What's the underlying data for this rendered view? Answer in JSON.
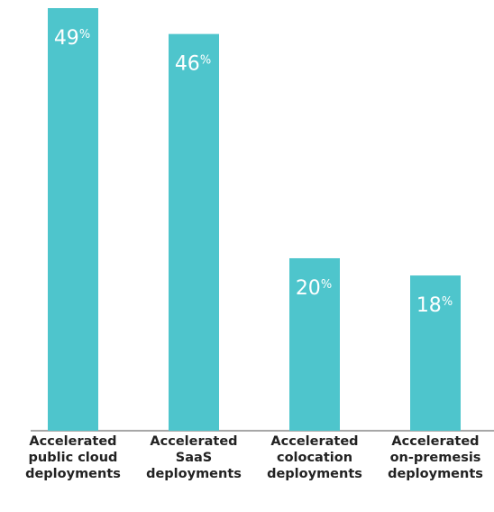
{
  "chart_data": {
    "type": "bar",
    "categories": [
      [
        "Accelerated",
        "public cloud",
        "deployments"
      ],
      [
        "Accelerated",
        "SaaS",
        "deployments"
      ],
      [
        "Accelerated",
        "colocation",
        "deployments"
      ],
      [
        "Accelerated",
        "on-premesis",
        "deployments"
      ]
    ],
    "values": [
      49,
      46,
      20,
      18
    ],
    "value_labels": [
      "49",
      "46",
      "20",
      "18"
    ],
    "value_unit": "%",
    "ylim": [
      0,
      49
    ],
    "grid": false,
    "legend": "none",
    "title": "",
    "xlabel": "",
    "ylabel": ""
  },
  "colors": {
    "bar": "#4ec5cc",
    "axis": "#8a8a8a",
    "value_text": "#ffffff",
    "label_text": "#222222"
  }
}
